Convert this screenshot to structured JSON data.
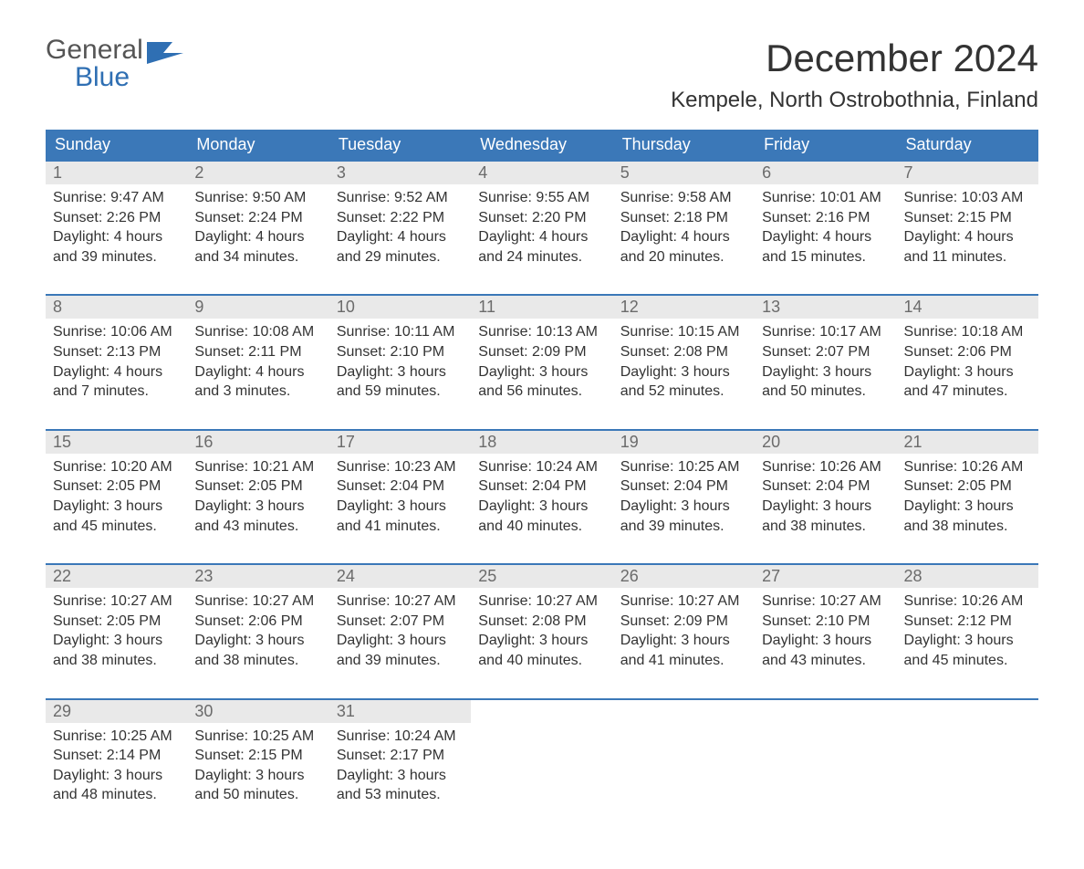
{
  "logo": {
    "word1": "General",
    "word2": "Blue",
    "icon_color": "#2f6fb3"
  },
  "title": "December 2024",
  "location": "Kempele, North Ostrobothnia, Finland",
  "header_bg": "#3b78b8",
  "daynum_bg": "#e9e9e9",
  "columns": [
    "Sunday",
    "Monday",
    "Tuesday",
    "Wednesday",
    "Thursday",
    "Friday",
    "Saturday"
  ],
  "weeks": [
    {
      "nums": [
        "1",
        "2",
        "3",
        "4",
        "5",
        "6",
        "7"
      ],
      "cells": [
        [
          "Sunrise: 9:47 AM",
          "Sunset: 2:26 PM",
          "Daylight: 4 hours",
          "and 39 minutes."
        ],
        [
          "Sunrise: 9:50 AM",
          "Sunset: 2:24 PM",
          "Daylight: 4 hours",
          "and 34 minutes."
        ],
        [
          "Sunrise: 9:52 AM",
          "Sunset: 2:22 PM",
          "Daylight: 4 hours",
          "and 29 minutes."
        ],
        [
          "Sunrise: 9:55 AM",
          "Sunset: 2:20 PM",
          "Daylight: 4 hours",
          "and 24 minutes."
        ],
        [
          "Sunrise: 9:58 AM",
          "Sunset: 2:18 PM",
          "Daylight: 4 hours",
          "and 20 minutes."
        ],
        [
          "Sunrise: 10:01 AM",
          "Sunset: 2:16 PM",
          "Daylight: 4 hours",
          "and 15 minutes."
        ],
        [
          "Sunrise: 10:03 AM",
          "Sunset: 2:15 PM",
          "Daylight: 4 hours",
          "and 11 minutes."
        ]
      ]
    },
    {
      "nums": [
        "8",
        "9",
        "10",
        "11",
        "12",
        "13",
        "14"
      ],
      "cells": [
        [
          "Sunrise: 10:06 AM",
          "Sunset: 2:13 PM",
          "Daylight: 4 hours",
          "and 7 minutes."
        ],
        [
          "Sunrise: 10:08 AM",
          "Sunset: 2:11 PM",
          "Daylight: 4 hours",
          "and 3 minutes."
        ],
        [
          "Sunrise: 10:11 AM",
          "Sunset: 2:10 PM",
          "Daylight: 3 hours",
          "and 59 minutes."
        ],
        [
          "Sunrise: 10:13 AM",
          "Sunset: 2:09 PM",
          "Daylight: 3 hours",
          "and 56 minutes."
        ],
        [
          "Sunrise: 10:15 AM",
          "Sunset: 2:08 PM",
          "Daylight: 3 hours",
          "and 52 minutes."
        ],
        [
          "Sunrise: 10:17 AM",
          "Sunset: 2:07 PM",
          "Daylight: 3 hours",
          "and 50 minutes."
        ],
        [
          "Sunrise: 10:18 AM",
          "Sunset: 2:06 PM",
          "Daylight: 3 hours",
          "and 47 minutes."
        ]
      ]
    },
    {
      "nums": [
        "15",
        "16",
        "17",
        "18",
        "19",
        "20",
        "21"
      ],
      "cells": [
        [
          "Sunrise: 10:20 AM",
          "Sunset: 2:05 PM",
          "Daylight: 3 hours",
          "and 45 minutes."
        ],
        [
          "Sunrise: 10:21 AM",
          "Sunset: 2:05 PM",
          "Daylight: 3 hours",
          "and 43 minutes."
        ],
        [
          "Sunrise: 10:23 AM",
          "Sunset: 2:04 PM",
          "Daylight: 3 hours",
          "and 41 minutes."
        ],
        [
          "Sunrise: 10:24 AM",
          "Sunset: 2:04 PM",
          "Daylight: 3 hours",
          "and 40 minutes."
        ],
        [
          "Sunrise: 10:25 AM",
          "Sunset: 2:04 PM",
          "Daylight: 3 hours",
          "and 39 minutes."
        ],
        [
          "Sunrise: 10:26 AM",
          "Sunset: 2:04 PM",
          "Daylight: 3 hours",
          "and 38 minutes."
        ],
        [
          "Sunrise: 10:26 AM",
          "Sunset: 2:05 PM",
          "Daylight: 3 hours",
          "and 38 minutes."
        ]
      ]
    },
    {
      "nums": [
        "22",
        "23",
        "24",
        "25",
        "26",
        "27",
        "28"
      ],
      "cells": [
        [
          "Sunrise: 10:27 AM",
          "Sunset: 2:05 PM",
          "Daylight: 3 hours",
          "and 38 minutes."
        ],
        [
          "Sunrise: 10:27 AM",
          "Sunset: 2:06 PM",
          "Daylight: 3 hours",
          "and 38 minutes."
        ],
        [
          "Sunrise: 10:27 AM",
          "Sunset: 2:07 PM",
          "Daylight: 3 hours",
          "and 39 minutes."
        ],
        [
          "Sunrise: 10:27 AM",
          "Sunset: 2:08 PM",
          "Daylight: 3 hours",
          "and 40 minutes."
        ],
        [
          "Sunrise: 10:27 AM",
          "Sunset: 2:09 PM",
          "Daylight: 3 hours",
          "and 41 minutes."
        ],
        [
          "Sunrise: 10:27 AM",
          "Sunset: 2:10 PM",
          "Daylight: 3 hours",
          "and 43 minutes."
        ],
        [
          "Sunrise: 10:26 AM",
          "Sunset: 2:12 PM",
          "Daylight: 3 hours",
          "and 45 minutes."
        ]
      ]
    },
    {
      "nums": [
        "29",
        "30",
        "31",
        "",
        "",
        "",
        ""
      ],
      "cells": [
        [
          "Sunrise: 10:25 AM",
          "Sunset: 2:14 PM",
          "Daylight: 3 hours",
          "and 48 minutes."
        ],
        [
          "Sunrise: 10:25 AM",
          "Sunset: 2:15 PM",
          "Daylight: 3 hours",
          "and 50 minutes."
        ],
        [
          "Sunrise: 10:24 AM",
          "Sunset: 2:17 PM",
          "Daylight: 3 hours",
          "and 53 minutes."
        ],
        [],
        [],
        [],
        []
      ]
    }
  ]
}
